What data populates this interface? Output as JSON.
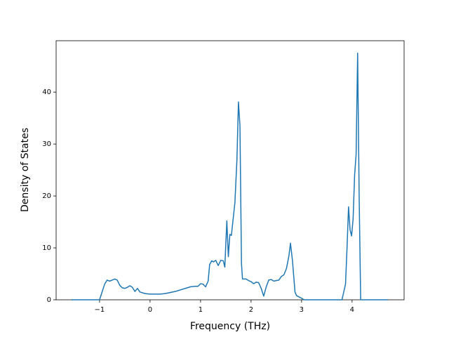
{
  "chart_data": {
    "type": "line",
    "xlabel": "Frequency (THz)",
    "ylabel": "Density of States",
    "x": [
      -1.56,
      -1.0,
      -0.95,
      -0.9,
      -0.85,
      -0.8,
      -0.75,
      -0.7,
      -0.65,
      -0.6,
      -0.55,
      -0.5,
      -0.45,
      -0.4,
      -0.35,
      -0.3,
      -0.25,
      -0.2,
      -0.1,
      0,
      0.2,
      0.3,
      0.5,
      0.7,
      0.8,
      0.9,
      0.95,
      1.0,
      1.05,
      1.1,
      1.15,
      1.18,
      1.22,
      1.26,
      1.3,
      1.35,
      1.4,
      1.45,
      1.48,
      1.52,
      1.55,
      1.58,
      1.61,
      1.68,
      1.72,
      1.75,
      1.78,
      1.81,
      1.83,
      1.9,
      1.95,
      2.0,
      2.05,
      2.1,
      2.15,
      2.2,
      2.25,
      2.3,
      2.35,
      2.4,
      2.45,
      2.5,
      2.55,
      2.6,
      2.65,
      2.7,
      2.75,
      2.78,
      2.82,
      2.87,
      2.9,
      3.0,
      3.05,
      3.8,
      3.87,
      3.9,
      3.93,
      3.96,
      3.99,
      4.02,
      4.05,
      4.08,
      4.11,
      4.14,
      4.17,
      4.71
    ],
    "series": [
      {
        "color": "#1f77b4",
        "values": [
          0,
          0,
          1.5,
          3.0,
          3.8,
          3.6,
          3.8,
          4.0,
          3.8,
          2.8,
          2.3,
          2.2,
          2.4,
          2.7,
          2.4,
          1.6,
          2.2,
          1.5,
          1.2,
          1.1,
          1.1,
          1.2,
          1.6,
          2.2,
          2.5,
          2.6,
          2.6,
          3.1,
          3.0,
          2.5,
          3.6,
          6.8,
          7.5,
          7.3,
          7.6,
          6.6,
          7.6,
          7.5,
          6.3,
          15.2,
          8.3,
          12.6,
          12.4,
          18.7,
          27,
          38.1,
          33.5,
          7,
          4,
          4,
          3.7,
          3.5,
          3.1,
          3.4,
          3.3,
          2.2,
          0.7,
          2.5,
          3.8,
          3.9,
          3.6,
          3.7,
          3.8,
          4.5,
          4.8,
          6.0,
          8.5,
          10.9,
          7.5,
          1.5,
          0.8,
          0.3,
          0,
          0,
          3,
          10,
          17.9,
          13.5,
          12.3,
          15.5,
          24,
          28,
          47.5,
          20,
          0,
          0
        ]
      }
    ],
    "xlim": [
      -1.86,
      5.03
    ],
    "ylim": [
      0,
      49.9
    ],
    "xticks": [
      {
        "value": -1,
        "label": "−1"
      },
      0,
      1,
      2,
      3,
      4
    ],
    "yticks": [
      0,
      10,
      20,
      30,
      40
    ]
  }
}
